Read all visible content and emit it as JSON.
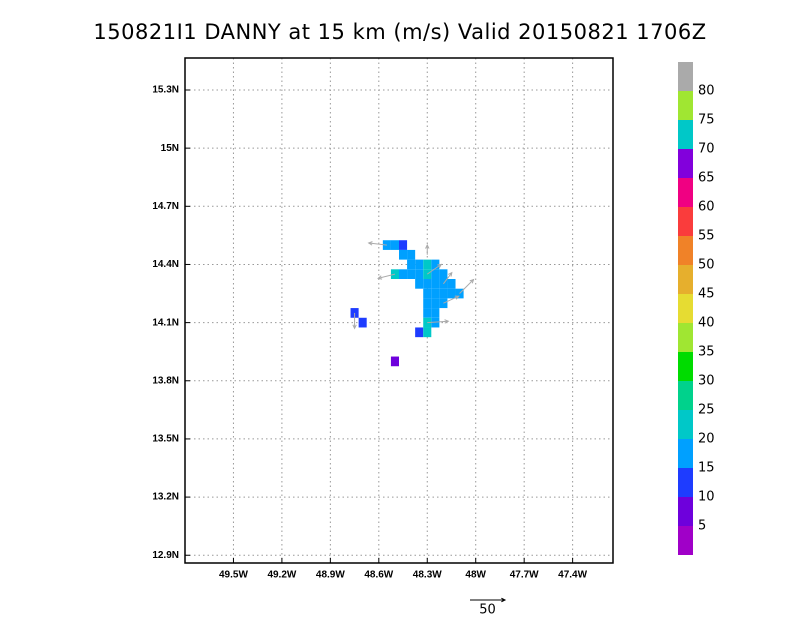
{
  "chart_data": {
    "type": "heatmap",
    "title": "150821I1 DANNY at 15 km (m/s) Valid 20150821 1706Z",
    "xlim": [
      -49.8,
      -47.15
    ],
    "xticks": [
      {
        "value": -49.5,
        "label": "49.5W"
      },
      {
        "value": -49.2,
        "label": "49.2W"
      },
      {
        "value": -48.9,
        "label": "48.9W"
      },
      {
        "value": -48.6,
        "label": "48.6W"
      },
      {
        "value": -48.3,
        "label": "48.3W"
      },
      {
        "value": -48.0,
        "label": "48W"
      },
      {
        "value": -47.7,
        "label": "47.7W"
      },
      {
        "value": -47.4,
        "label": "47.4W"
      }
    ],
    "ylim": [
      12.86,
      15.465
    ],
    "yticks": [
      {
        "value": 12.9,
        "label": "12.9N"
      },
      {
        "value": 13.2,
        "label": "13.2N"
      },
      {
        "value": 13.5,
        "label": "13.5N"
      },
      {
        "value": 13.8,
        "label": "13.8N"
      },
      {
        "value": 14.1,
        "label": "14.1N"
      },
      {
        "value": 14.4,
        "label": "14.4N"
      },
      {
        "value": 14.7,
        "label": "14.7N"
      },
      {
        "value": 15.0,
        "label": "15N"
      },
      {
        "value": 15.3,
        "label": "15.3N"
      }
    ],
    "grid": true,
    "cells": [
      {
        "lon": -48.55,
        "lat": 14.5,
        "value": 17
      },
      {
        "lon": -48.5,
        "lat": 14.5,
        "value": 17
      },
      {
        "lon": -48.45,
        "lat": 14.5,
        "value": 12
      },
      {
        "lon": -48.45,
        "lat": 14.45,
        "value": 17
      },
      {
        "lon": -48.4,
        "lat": 14.45,
        "value": 17
      },
      {
        "lon": -48.4,
        "lat": 14.4,
        "value": 17
      },
      {
        "lon": -48.35,
        "lat": 14.4,
        "value": 17
      },
      {
        "lon": -48.3,
        "lat": 14.4,
        "value": 22
      },
      {
        "lon": -48.25,
        "lat": 14.4,
        "value": 17
      },
      {
        "lon": -48.5,
        "lat": 14.35,
        "value": 22
      },
      {
        "lon": -48.45,
        "lat": 14.35,
        "value": 17
      },
      {
        "lon": -48.4,
        "lat": 14.35,
        "value": 17
      },
      {
        "lon": -48.35,
        "lat": 14.35,
        "value": 17
      },
      {
        "lon": -48.3,
        "lat": 14.35,
        "value": 21
      },
      {
        "lon": -48.25,
        "lat": 14.35,
        "value": 17
      },
      {
        "lon": -48.2,
        "lat": 14.35,
        "value": 17
      },
      {
        "lon": -48.35,
        "lat": 14.3,
        "value": 17
      },
      {
        "lon": -48.3,
        "lat": 14.3,
        "value": 17
      },
      {
        "lon": -48.25,
        "lat": 14.3,
        "value": 17
      },
      {
        "lon": -48.2,
        "lat": 14.3,
        "value": 17
      },
      {
        "lon": -48.15,
        "lat": 14.3,
        "value": 17
      },
      {
        "lon": -48.3,
        "lat": 14.25,
        "value": 17
      },
      {
        "lon": -48.25,
        "lat": 14.25,
        "value": 17
      },
      {
        "lon": -48.2,
        "lat": 14.25,
        "value": 17
      },
      {
        "lon": -48.15,
        "lat": 14.25,
        "value": 17
      },
      {
        "lon": -48.1,
        "lat": 14.25,
        "value": 17
      },
      {
        "lon": -48.3,
        "lat": 14.2,
        "value": 17
      },
      {
        "lon": -48.25,
        "lat": 14.2,
        "value": 17
      },
      {
        "lon": -48.2,
        "lat": 14.2,
        "value": 17
      },
      {
        "lon": -48.3,
        "lat": 14.15,
        "value": 17
      },
      {
        "lon": -48.25,
        "lat": 14.15,
        "value": 17
      },
      {
        "lon": -48.3,
        "lat": 14.1,
        "value": 21
      },
      {
        "lon": -48.25,
        "lat": 14.1,
        "value": 17
      },
      {
        "lon": -48.35,
        "lat": 14.05,
        "value": 12
      },
      {
        "lon": -48.3,
        "lat": 14.05,
        "value": 21
      },
      {
        "lon": -48.75,
        "lat": 14.15,
        "value": 11
      },
      {
        "lon": -48.7,
        "lat": 14.1,
        "value": 12
      },
      {
        "lon": -48.5,
        "lat": 13.9,
        "value": 8
      }
    ],
    "vectors": [
      {
        "lon": -48.55,
        "lat": 14.5,
        "u": -26,
        "v": 3
      },
      {
        "lon": -48.3,
        "lat": 14.45,
        "u": 0,
        "v": 14
      },
      {
        "lon": -48.5,
        "lat": 14.35,
        "u": -24,
        "v": -6
      },
      {
        "lon": -48.3,
        "lat": 14.35,
        "u": 20,
        "v": 14
      },
      {
        "lon": -48.2,
        "lat": 14.3,
        "u": 12,
        "v": 16
      },
      {
        "lon": -48.1,
        "lat": 14.25,
        "u": 20,
        "v": 20
      },
      {
        "lon": -48.2,
        "lat": 14.2,
        "u": 22,
        "v": 10
      },
      {
        "lon": -48.3,
        "lat": 14.1,
        "u": 30,
        "v": 2
      },
      {
        "lon": -48.75,
        "lat": 14.15,
        "u": 0,
        "v": -22
      }
    ],
    "vector_color": "#aaaaaa",
    "ref_vector": 50,
    "colorbar": {
      "levels": [
        5,
        10,
        15,
        20,
        25,
        30,
        35,
        40,
        45,
        50,
        55,
        60,
        65,
        70,
        75,
        80
      ],
      "colors": [
        "#a000c8",
        "#6e00dc",
        "#1e3cff",
        "#00a0ff",
        "#00c8c8",
        "#00d28c",
        "#00dc00",
        "#a0e632",
        "#e6dc32",
        "#e6af2d",
        "#f08228",
        "#fa3c3c",
        "#f00082",
        "#8200dc",
        "#00c8c8",
        "#a0e632",
        "#aaaaaa"
      ]
    }
  }
}
